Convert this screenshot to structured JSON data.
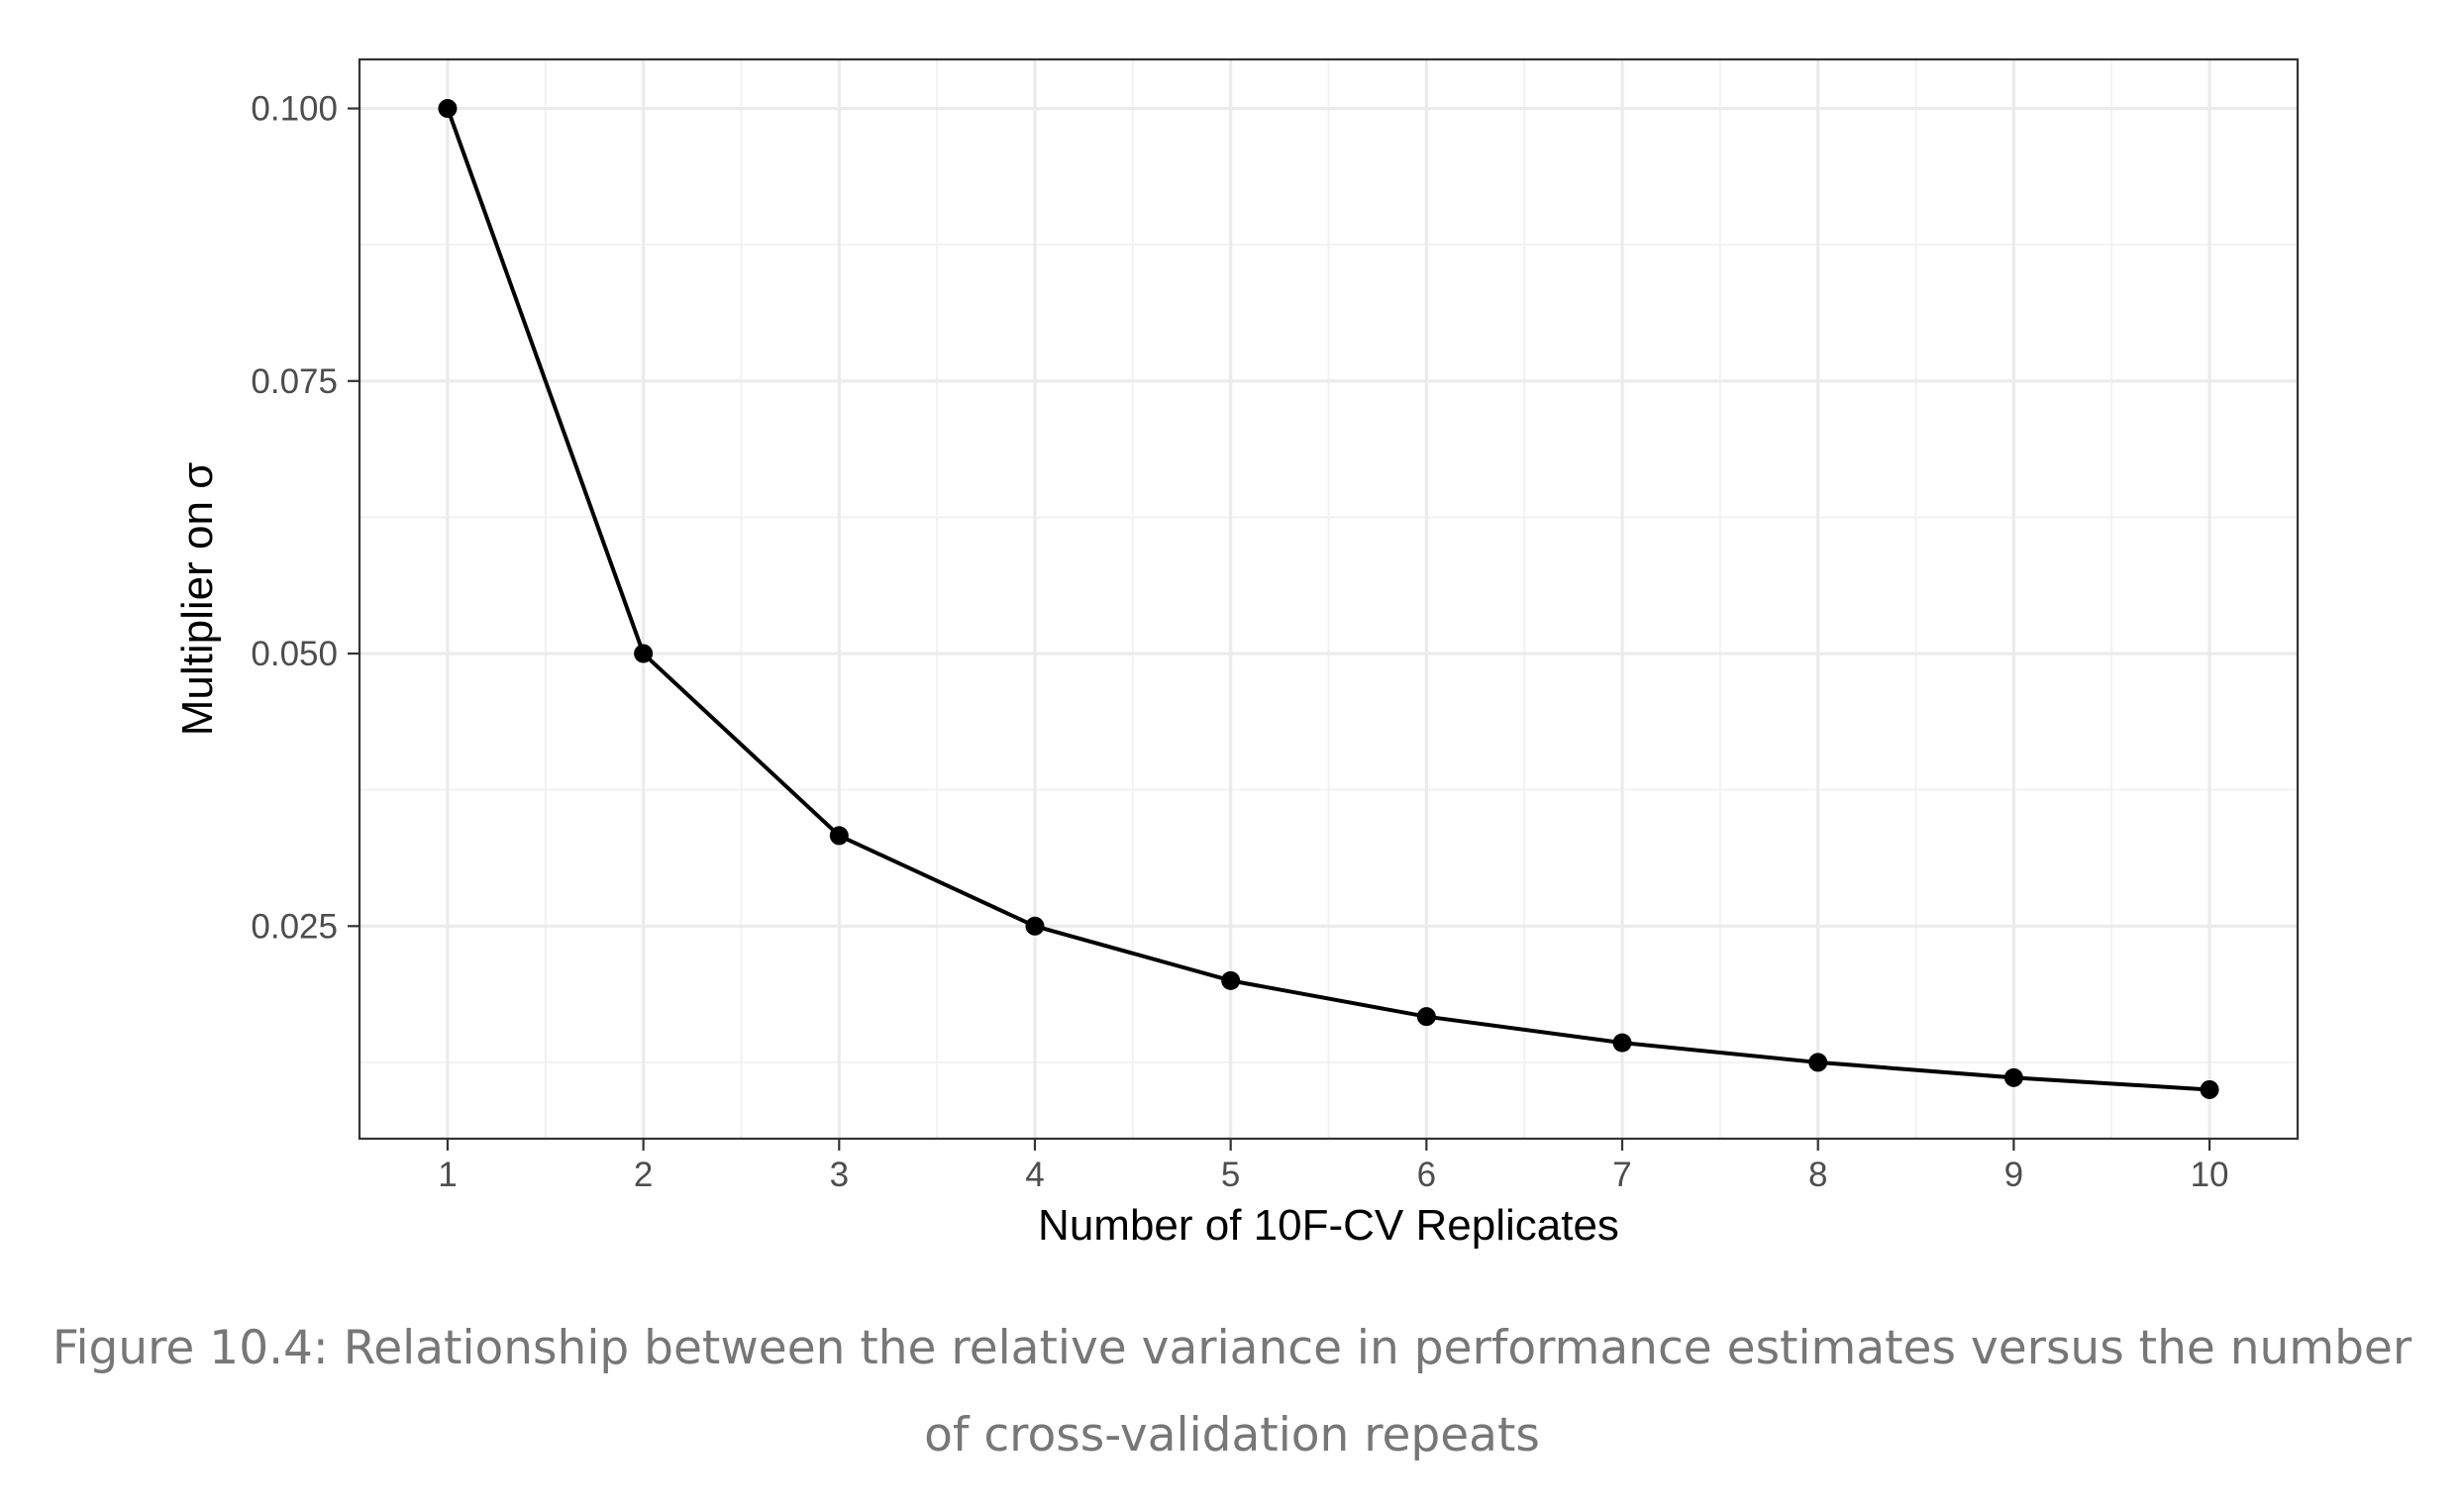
{
  "chart_data": {
    "type": "line",
    "xlabel": "Number of 10F-CV Replicates",
    "ylabel": "Multiplier on σ",
    "x": [
      1,
      2,
      3,
      4,
      5,
      6,
      7,
      8,
      9,
      10
    ],
    "series": [
      {
        "values": [
          0.1,
          0.05,
          0.0333,
          0.025,
          0.02,
          0.0167,
          0.0143,
          0.0125,
          0.0111,
          0.01
        ],
        "color": "#000000"
      }
    ],
    "xlim": [
      0.55,
      10.45
    ],
    "ylim": [
      0.0055,
      0.1045
    ],
    "x_ticks": [
      "1",
      "2",
      "3",
      "4",
      "5",
      "6",
      "7",
      "8",
      "9",
      "10"
    ],
    "y_ticks": [
      "0.025",
      "0.050",
      "0.075",
      "0.100"
    ],
    "grid": true,
    "markers": "points"
  },
  "caption": "Figure 10.4: Relationship between the relative variance in performance estimates versus the number of cross-validation repeats"
}
